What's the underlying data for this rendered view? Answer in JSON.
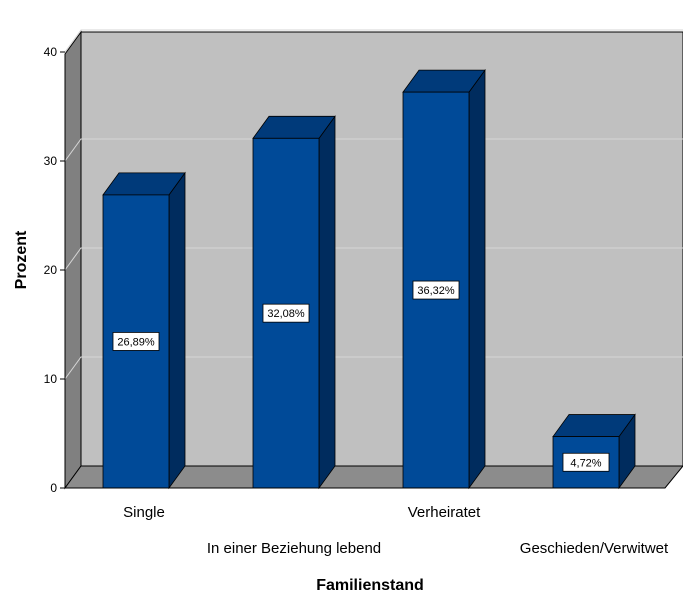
{
  "chart_data": {
    "type": "bar",
    "style": "3d",
    "categories": [
      "Single",
      "In einer Beziehung lebend",
      "Verheiratet",
      "Geschieden/Verwitwet"
    ],
    "values": [
      26.89,
      32.08,
      36.32,
      4.72
    ],
    "data_labels": [
      "26,89%",
      "32,08%",
      "36,32%",
      "4,72%"
    ],
    "title": "",
    "xlabel": "Familienstand",
    "ylabel": "Prozent",
    "ylim": [
      0,
      40
    ],
    "yticks": [
      "0",
      "10",
      "20",
      "30",
      "40"
    ],
    "grid": true,
    "legend": "none"
  },
  "colors": {
    "bar_front": "#004a98",
    "bar_top": "#003a7a",
    "bar_side": "#002c5e",
    "plot_back": "#c0c0c0",
    "plot_wall": "#808080",
    "plot_floor": "#8c8c8c",
    "gridline": "#d6d6d6"
  }
}
